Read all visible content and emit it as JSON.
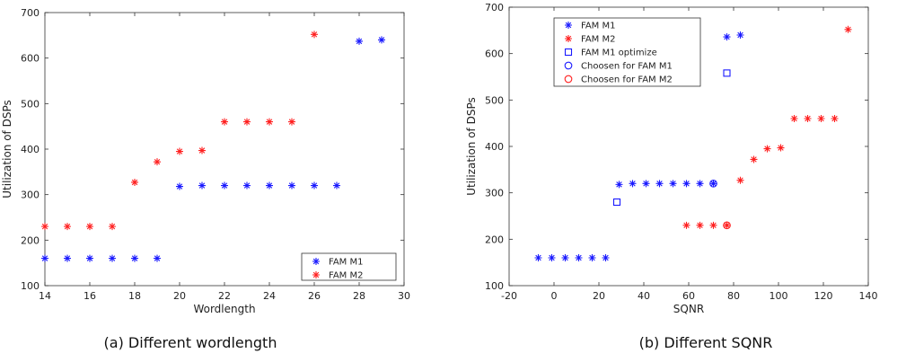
{
  "chart_data": [
    {
      "type": "scatter",
      "caption": "(a) Different wordlength",
      "xlabel": "Wordlength",
      "ylabel": "Utilization of DSPs",
      "xlim": [
        14,
        30
      ],
      "ylim": [
        100,
        700
      ],
      "xticks": [
        14,
        16,
        18,
        20,
        22,
        24,
        26,
        28,
        30
      ],
      "yticks": [
        100,
        200,
        300,
        400,
        500,
        600,
        700
      ],
      "grid": false,
      "legend_position": "bottom-right",
      "series": [
        {
          "name": "FAM M1",
          "color": "#1a1aff",
          "marker": "asterisk",
          "x": [
            14,
            15,
            16,
            17,
            18,
            19,
            20,
            21,
            22,
            23,
            24,
            25,
            26,
            27,
            28,
            29
          ],
          "y": [
            160,
            160,
            160,
            160,
            160,
            160,
            318,
            320,
            320,
            320,
            320,
            320,
            320,
            320,
            637,
            640
          ]
        },
        {
          "name": "FAM M2",
          "color": "#ff2020",
          "marker": "asterisk",
          "x": [
            14,
            15,
            16,
            17,
            18,
            19,
            20,
            21,
            22,
            23,
            24,
            25,
            26
          ],
          "y": [
            230,
            230,
            230,
            230,
            327,
            372,
            395,
            397,
            460,
            460,
            460,
            460,
            652
          ]
        }
      ]
    },
    {
      "type": "scatter",
      "caption": "(b) Different SQNR",
      "xlabel": "SQNR",
      "ylabel": "Utilization of DSPs",
      "xlim": [
        -20,
        140
      ],
      "ylim": [
        100,
        700
      ],
      "xticks": [
        -20,
        0,
        20,
        40,
        60,
        80,
        100,
        120,
        140
      ],
      "yticks": [
        100,
        200,
        300,
        400,
        500,
        600,
        700
      ],
      "grid": false,
      "legend_position": "top-left",
      "series": [
        {
          "name": "FAM M1",
          "color": "#1a1aff",
          "marker": "asterisk",
          "x": [
            -7,
            -1,
            5,
            11,
            17,
            23,
            29,
            35,
            41,
            47,
            53,
            59,
            65,
            71,
            77,
            83
          ],
          "y": [
            160,
            160,
            160,
            160,
            160,
            160,
            318,
            320,
            320,
            320,
            320,
            320,
            320,
            320,
            636,
            640
          ]
        },
        {
          "name": "FAM M2",
          "color": "#ff2020",
          "marker": "asterisk",
          "x": [
            59,
            65,
            71,
            77,
            83,
            89,
            95,
            101,
            107,
            113,
            119,
            125,
            131
          ],
          "y": [
            230,
            230,
            230,
            230,
            327,
            372,
            395,
            397,
            460,
            460,
            460,
            460,
            652
          ]
        },
        {
          "name": "FAM M1 optimize",
          "color": "#1a1aff",
          "marker": "square",
          "x": [
            28,
            77
          ],
          "y": [
            280,
            558
          ]
        },
        {
          "name": "Choosen for FAM M1",
          "color": "#1a1aff",
          "marker": "circle",
          "x": [
            71
          ],
          "y": [
            320
          ]
        },
        {
          "name": "Choosen for FAM M2",
          "color": "#ff2020",
          "marker": "circle",
          "x": [
            77
          ],
          "y": [
            230
          ]
        }
      ]
    }
  ]
}
